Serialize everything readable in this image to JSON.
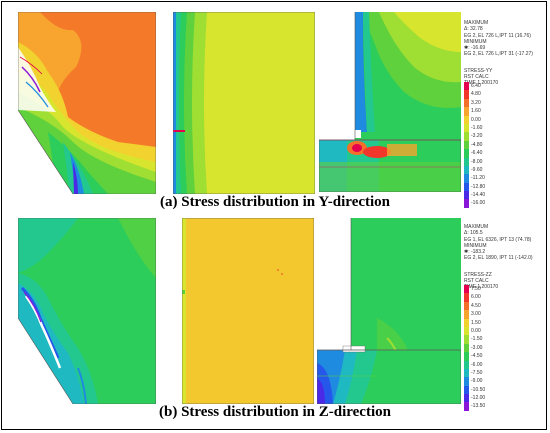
{
  "captions": {
    "top": "(a) Stress distribution in Y-direction",
    "bottom": "(b) Stress distribution in Z-direction"
  },
  "y_panel": {
    "meta": {
      "max_label": "MAXIMUM",
      "max_value": "Δ: 32.78",
      "max_loc": "EG 2, EL 726 L,IPT 11 (16.76)",
      "min_label": "MINIMUM",
      "min_value": "✱: -16.69",
      "min_loc": "EG 2, EL 726 L,IPT 31 (-17.27)",
      "quantity": "STRESS-YY",
      "calc": "RST CALC",
      "time": "TIME 1.200170"
    },
    "legend": [
      {
        "label": "6.40",
        "color": "#e4004f"
      },
      {
        "label": "4.80",
        "color": "#f2362b"
      },
      {
        "label": "3.20",
        "color": "#f4702a"
      },
      {
        "label": "1.60",
        "color": "#f7a52e"
      },
      {
        "label": "0.00",
        "color": "#f2d22e"
      },
      {
        "label": "-1.60",
        "color": "#d8e52e"
      },
      {
        "label": "-3.20",
        "color": "#9fde33"
      },
      {
        "label": "-4.80",
        "color": "#5fd13c"
      },
      {
        "label": "-6.40",
        "color": "#2ccd5a"
      },
      {
        "label": "-8.00",
        "color": "#22c88e"
      },
      {
        "label": "-9.60",
        "color": "#1fb9c1"
      },
      {
        "label": "-11.20",
        "color": "#1f8be0"
      },
      {
        "label": "-12.80",
        "color": "#2558ea"
      },
      {
        "label": "-14.40",
        "color": "#4a2ae6"
      },
      {
        "label": "-16.00",
        "color": "#8a17d8"
      }
    ]
  },
  "z_panel": {
    "meta": {
      "max_label": "MAXIMUM",
      "max_value": "Δ: 105.5",
      "max_loc": "EG 1, EL 6326, IPT 13 (74.78)",
      "min_label": "MINIMUM",
      "min_value": "✱: -183.2",
      "min_loc": "EG 2, EL 1890, IPT 11 (-142.0)",
      "quantity": "STRESS-ZZ",
      "calc": "RST CALC",
      "time": "TIME 1.200170"
    },
    "legend": [
      {
        "label": "7.50",
        "color": "#e4004f"
      },
      {
        "label": "6.00",
        "color": "#f2362b"
      },
      {
        "label": "4.50",
        "color": "#f4702a"
      },
      {
        "label": "3.00",
        "color": "#f7a52e"
      },
      {
        "label": "1.50",
        "color": "#f2d22e"
      },
      {
        "label": "0.00",
        "color": "#d8e52e"
      },
      {
        "label": "-1.50",
        "color": "#9fde33"
      },
      {
        "label": "-3.00",
        "color": "#5fd13c"
      },
      {
        "label": "-4.50",
        "color": "#2ccd5a"
      },
      {
        "label": "-6.00",
        "color": "#22c88e"
      },
      {
        "label": "-7.50",
        "color": "#1fb9c1"
      },
      {
        "label": "-9.00",
        "color": "#1f8be0"
      },
      {
        "label": "-10.50",
        "color": "#2558ea"
      },
      {
        "label": "-12.00",
        "color": "#4a2ae6"
      },
      {
        "label": "-13.50",
        "color": "#8a17d8"
      }
    ]
  }
}
